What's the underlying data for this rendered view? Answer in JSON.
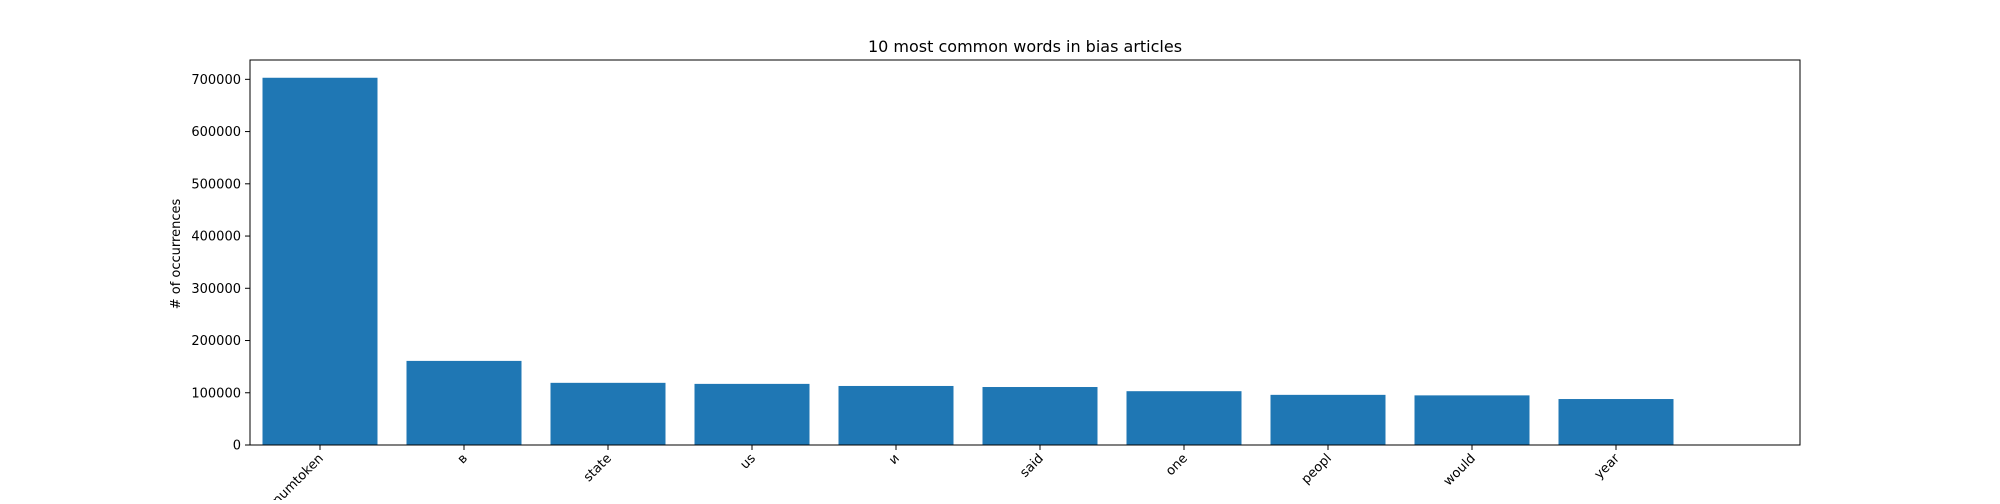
{
  "chart_data": {
    "type": "bar",
    "title": "10 most common words in bias articles",
    "xlabel": "",
    "ylabel": "# of occurrences",
    "categories": [
      "numtoken",
      "в",
      "state",
      "us",
      "и",
      "said",
      "one",
      "peopl",
      "would",
      "year"
    ],
    "values": [
      703000,
      161000,
      119000,
      117000,
      113000,
      111000,
      103000,
      96000,
      95000,
      88000
    ],
    "ylim": [
      0,
      737000
    ],
    "yticks": [
      0,
      100000,
      200000,
      300000,
      400000,
      500000,
      600000,
      700000
    ],
    "ytick_labels": [
      "0",
      "100000",
      "200000",
      "300000",
      "400000",
      "500000",
      "600000",
      "700000"
    ],
    "bar_color": "#1f77b4",
    "grid": false,
    "legend": "none"
  }
}
